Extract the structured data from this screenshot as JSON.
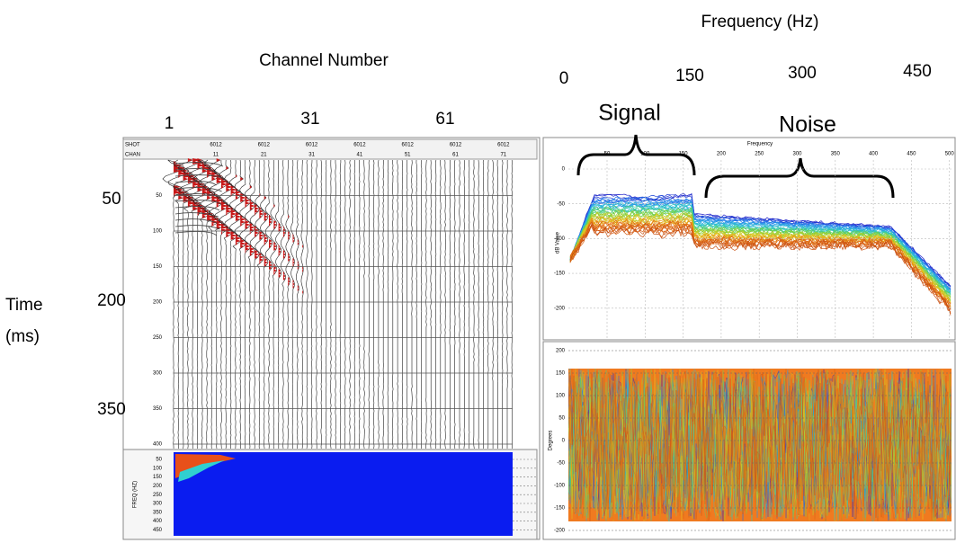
{
  "annotations": {
    "frequency_axis_title": "Frequency (Hz)",
    "frequency_ticks": [
      "0",
      "150",
      "300",
      "450"
    ],
    "channel_axis_title": "Channel Number",
    "channel_ticks": [
      "1",
      "31",
      "61"
    ],
    "signal": "Signal",
    "noise": "Noise",
    "time_ticks": [
      "50",
      "200",
      "350"
    ],
    "time_title": [
      "Time",
      "(ms)"
    ]
  },
  "gather": {
    "header_labels": [
      "SHOT",
      "CHAN"
    ],
    "shot_values": [
      "6012",
      "6012",
      "6012",
      "6012",
      "6012",
      "6012",
      "6012"
    ],
    "channel_labels": [
      "11",
      "21",
      "31",
      "41",
      "51",
      "61",
      "71"
    ],
    "time_ticks": [
      "50",
      "100",
      "150",
      "200",
      "250",
      "300",
      "350",
      "400"
    ],
    "freq_axis_label": "FREQ (HZ)",
    "freq_ticks": [
      "50",
      "100",
      "150",
      "200",
      "250",
      "300",
      "350",
      "400",
      "450"
    ]
  },
  "spectrum": {
    "title": "Frequency",
    "x_ticks": [
      "50",
      "100",
      "150",
      "200",
      "250",
      "300",
      "350",
      "400",
      "450",
      "500"
    ],
    "y_label": "dB Value",
    "y_ticks": [
      "0",
      "-50",
      "-100",
      "-150",
      "-200"
    ]
  },
  "phase": {
    "y_label": "Degrees",
    "y_ticks": [
      "200",
      "150",
      "100",
      "50",
      "0",
      "-50",
      "-100",
      "-150",
      "-200"
    ]
  }
}
